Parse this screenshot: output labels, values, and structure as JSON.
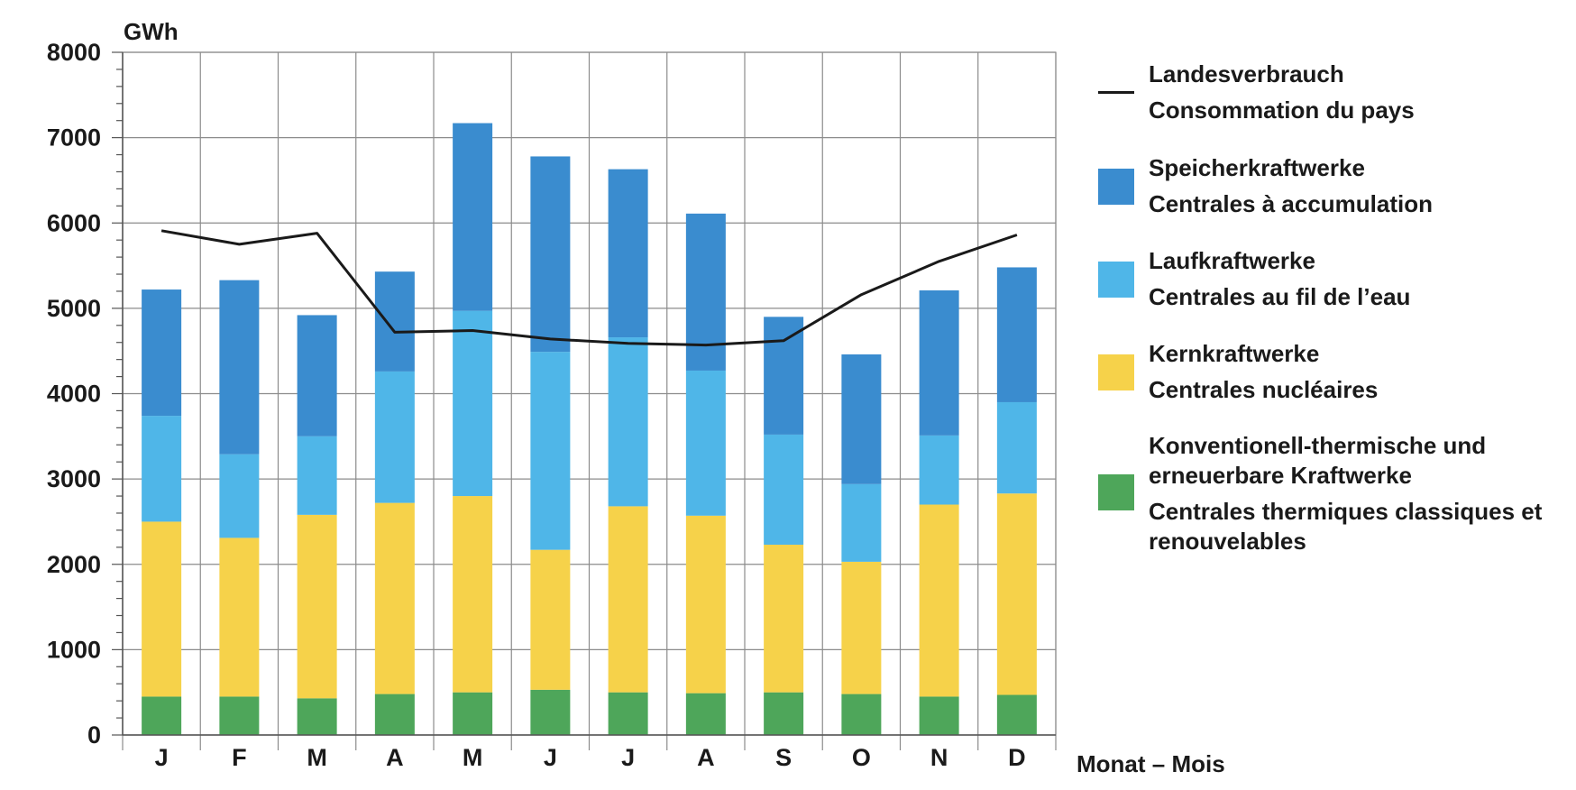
{
  "chart_data": {
    "type": "bar",
    "stacked": true,
    "unit_label": "GWh",
    "xlabel": "Monat – Mois",
    "categories": [
      "J",
      "F",
      "M",
      "A",
      "M",
      "J",
      "J",
      "A",
      "S",
      "O",
      "N",
      "D"
    ],
    "ylim": [
      0,
      8000
    ],
    "yticks": [
      0,
      1000,
      2000,
      3000,
      4000,
      5000,
      6000,
      7000,
      8000
    ],
    "grid": true,
    "legend_position": "right",
    "series": [
      {
        "id": "thermal",
        "name_de": "Konventionell-thermische und erneuerbare Kraftwerke",
        "name_fr": "Centrales thermiques classiques et renouvelables",
        "color": "#4ea65a",
        "values": [
          450,
          450,
          430,
          480,
          500,
          530,
          500,
          490,
          500,
          480,
          450,
          470
        ]
      },
      {
        "id": "nuclear",
        "name_de": "Kernkraftwerke",
        "name_fr": "Centrales nucléaires",
        "color": "#f6d24a",
        "values": [
          2050,
          1860,
          2150,
          2240,
          2300,
          1640,
          2180,
          2080,
          1730,
          1550,
          2250,
          2360
        ]
      },
      {
        "id": "runofriver",
        "name_de": "Laufkraftwerke",
        "name_fr": "Centrales au fil de l’eau",
        "color": "#4fb6e8",
        "values": [
          1240,
          980,
          920,
          1540,
          2170,
          2320,
          1980,
          1700,
          1290,
          910,
          810,
          1070
        ]
      },
      {
        "id": "storage",
        "name_de": "Speicherkraftwerke",
        "name_fr": "Centrales à accumulation",
        "color": "#3a8ccf",
        "values": [
          1480,
          2040,
          1420,
          1170,
          2200,
          2290,
          1970,
          1840,
          1380,
          1520,
          1700,
          1580
        ]
      }
    ],
    "line_series": {
      "id": "consumption",
      "name_de": "Landesverbrauch",
      "name_fr": "Consommation du pays",
      "color": "#1a1a1a",
      "values": [
        5910,
        5750,
        5880,
        4720,
        4740,
        4640,
        4590,
        4570,
        4620,
        5160,
        5550,
        5860
      ]
    }
  },
  "legend": {
    "items": [
      {
        "lines": [
          "Landesverbrauch",
          "Consommation du pays"
        ]
      },
      {
        "lines": [
          "Speicherkraftwerke",
          "Centrales à accumulation"
        ]
      },
      {
        "lines": [
          "Laufkraftwerke",
          "Centrales au fil de l’eau"
        ]
      },
      {
        "lines": [
          "Kernkraftwerke",
          "Centrales nucléaires"
        ]
      },
      {
        "lines": [
          "Konventionell-thermische und",
          "erneuerbare Kraftwerke",
          "Centrales thermiques classiques et",
          "renouvelables"
        ]
      }
    ]
  }
}
